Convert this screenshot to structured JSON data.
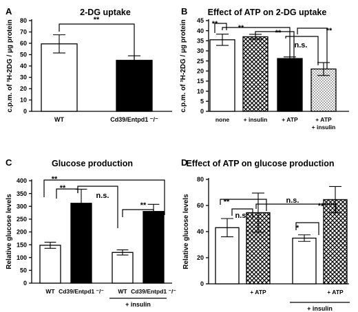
{
  "chart_data": [
    {
      "panel": "A",
      "title": "2-DG uptake",
      "type": "bar",
      "ylabel": "c.p.m. of ³H-2DG / µg protein",
      "ylim": [
        0,
        80
      ],
      "yticks": [
        0,
        10,
        20,
        30,
        40,
        50,
        60,
        70,
        80
      ],
      "categories": [
        "WT",
        "Cd39/Entpd1 ⁻/⁻"
      ],
      "values": [
        59.5,
        45.0
      ],
      "errors": [
        8.0,
        4.0
      ],
      "fills": [
        "white",
        "black"
      ],
      "annotations": [
        "**"
      ]
    },
    {
      "panel": "B",
      "title": "Effect of ATP on 2-DG uptake",
      "type": "bar",
      "ylabel": "c.p.m. of ³H-2DG / µg protein",
      "ylim": [
        0,
        45
      ],
      "yticks": [
        0,
        5,
        10,
        15,
        20,
        25,
        30,
        35,
        40,
        45
      ],
      "categories": [
        "none",
        "+ insulin",
        "+ ATP",
        "+ ATP\n+ insulin"
      ],
      "values": [
        35.5,
        37.0,
        26.2,
        21.0
      ],
      "errors": [
        2.8,
        1.2,
        0.8,
        3.2
      ],
      "fills": [
        "white",
        "crosshatch",
        "black",
        "lighthatch"
      ],
      "annotations": [
        "**",
        "**",
        "**",
        "n.s.",
        "**"
      ]
    },
    {
      "panel": "C",
      "title": "Glucose production",
      "type": "bar",
      "ylabel": "Relative glucose levels",
      "ylim": [
        0,
        400
      ],
      "yticks": [
        0,
        50,
        100,
        150,
        200,
        250,
        300,
        350,
        400
      ],
      "categories": [
        "WT",
        "Cd39/Entpd1 ⁻/⁻",
        "WT",
        "Cd39/Entpd1 ⁻/⁻"
      ],
      "group_label": "+ insulin",
      "values": [
        148,
        312,
        120,
        280
      ],
      "errors": [
        12,
        55,
        10,
        28
      ],
      "fills": [
        "white",
        "black",
        "white",
        "black"
      ],
      "annotations": [
        "**",
        "**",
        "n.s.",
        "**"
      ]
    },
    {
      "panel": "D",
      "title": "Effect of ATP on glucose production",
      "type": "bar",
      "ylabel": "Relative glucose levels",
      "ylim": [
        0,
        80
      ],
      "yticks": [
        0,
        20,
        40,
        60,
        80
      ],
      "categories": [
        "",
        "+ ATP",
        "",
        "+ ATP"
      ],
      "group_label": "+ insulin",
      "values": [
        43,
        54.5,
        35,
        64.5
      ],
      "errors": [
        7,
        15,
        2.5,
        10
      ],
      "fills": [
        "white",
        "crosshatch",
        "white",
        "crosshatch"
      ],
      "annotations": [
        "**",
        "n.s.",
        "n.s.",
        "*",
        "**"
      ]
    }
  ]
}
